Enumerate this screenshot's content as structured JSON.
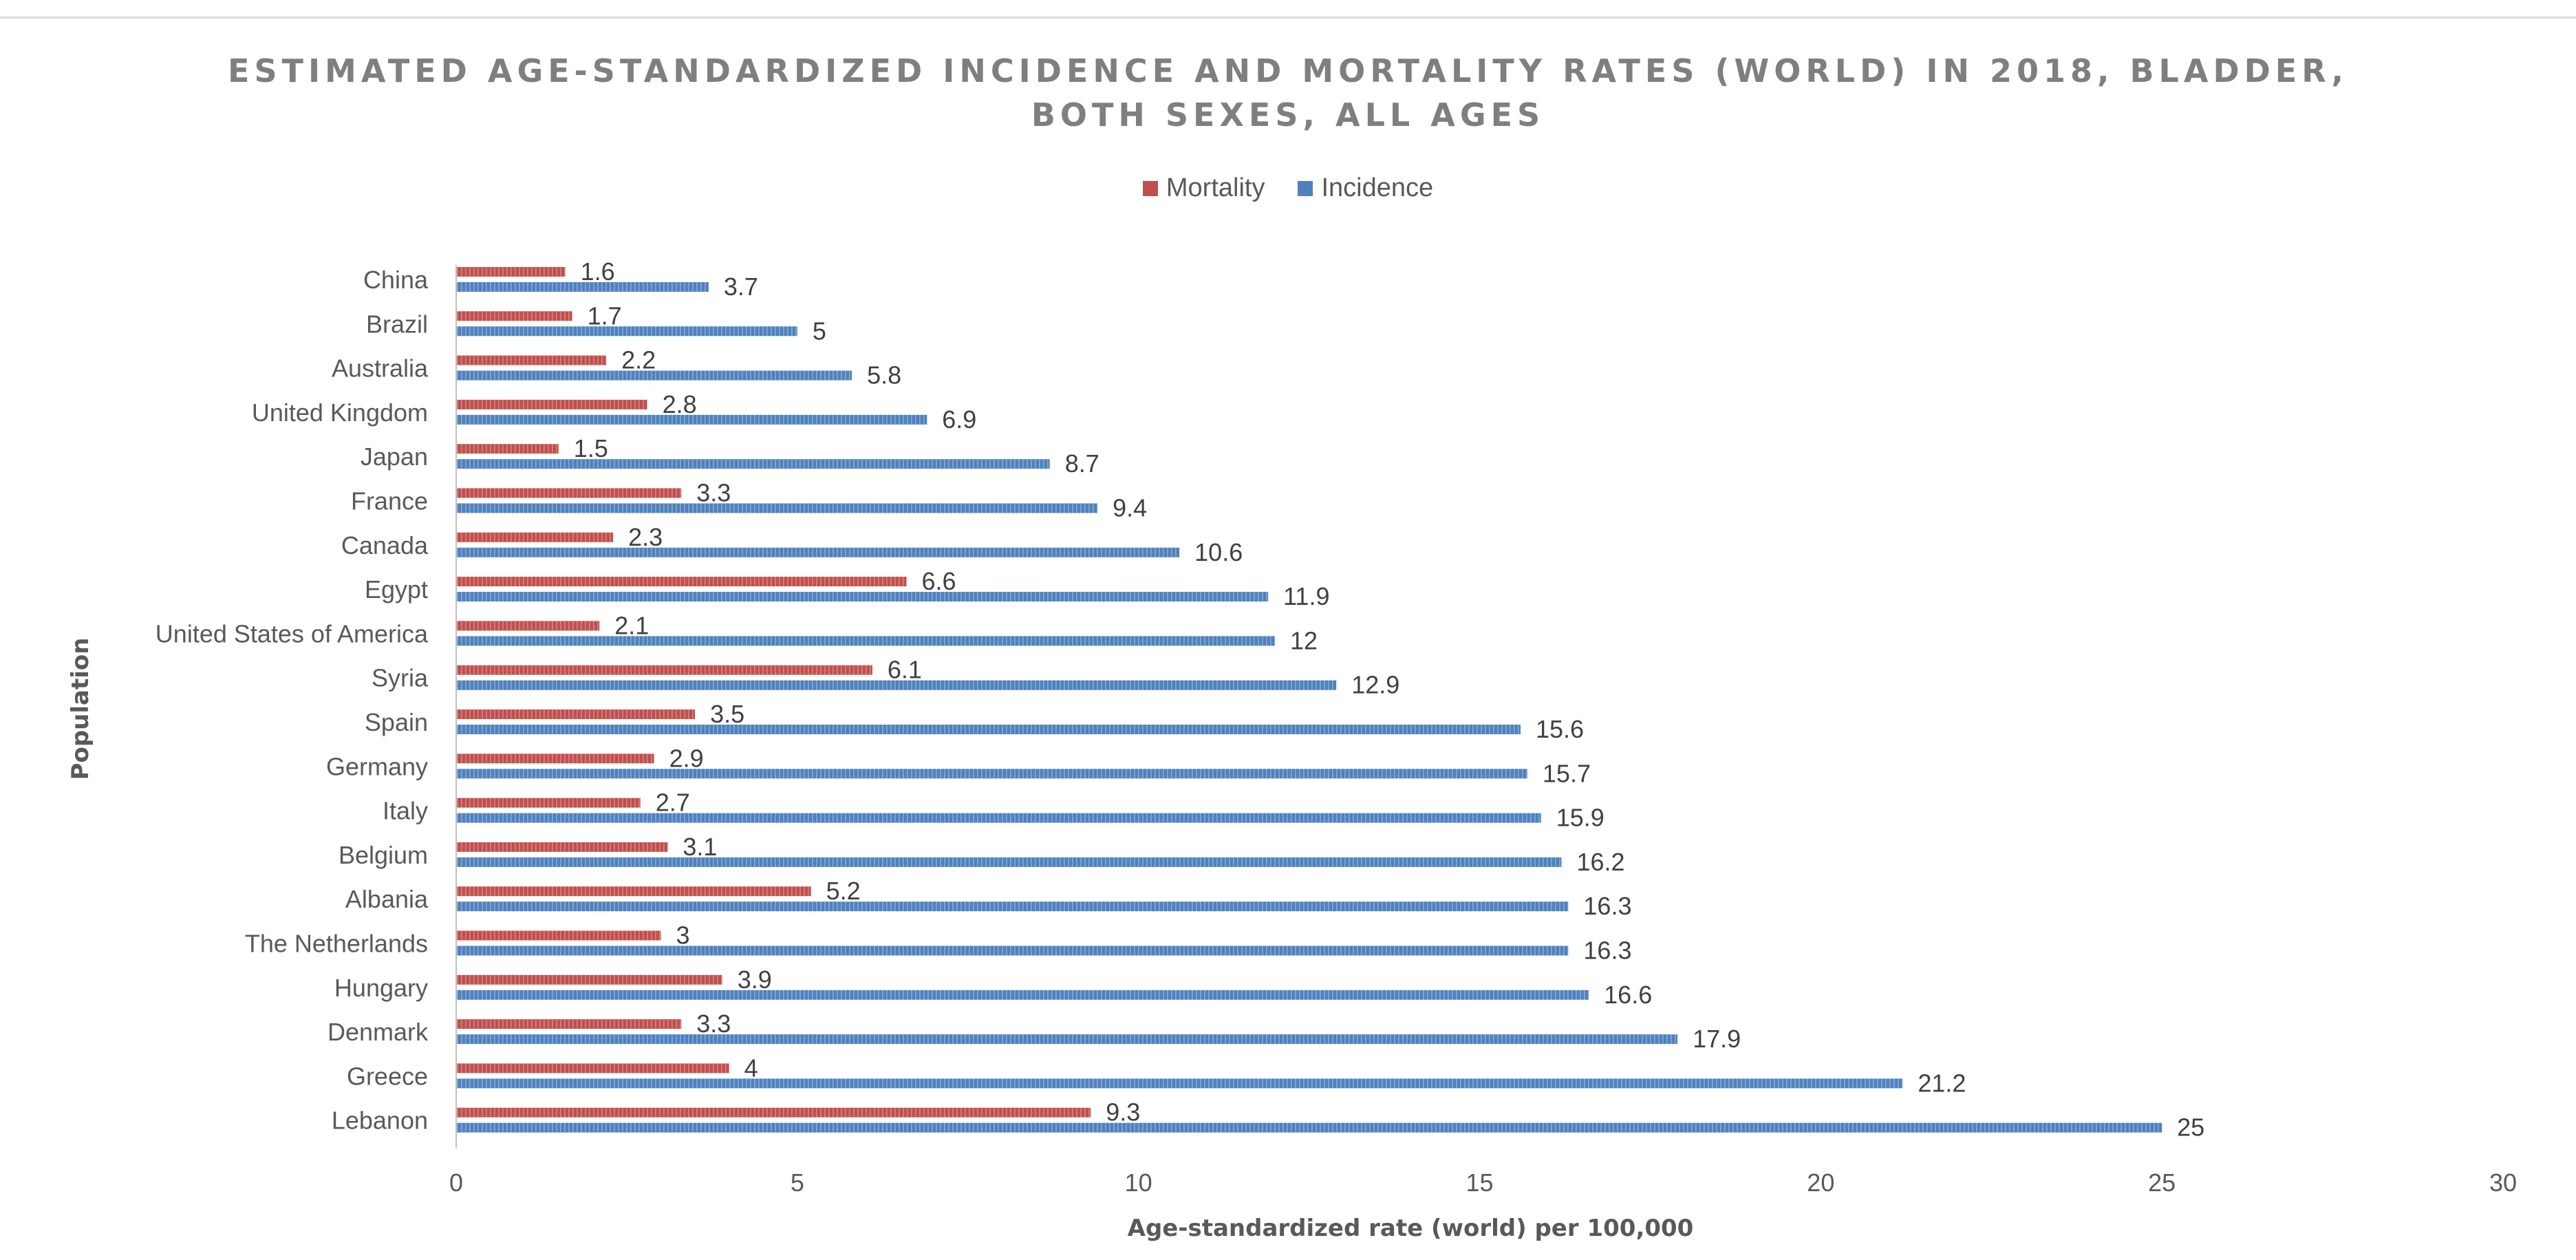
{
  "chart_data": {
    "type": "bar",
    "orientation": "horizontal",
    "title_lines": [
      "ESTIMATED AGE-STANDARDIZED INCIDENCE AND MORTALITY RATES (WORLD) IN 2018, BLADDER,",
      "BOTH SEXES, ALL AGES"
    ],
    "xlabel": "Age-standardized rate (world) per 100,000",
    "ylabel": "Population",
    "xlim": [
      0,
      30
    ],
    "xticks": [
      "0",
      "5",
      "10",
      "15",
      "20",
      "25",
      "30"
    ],
    "legend_position": "top-center",
    "categories": [
      "China",
      "Brazil",
      "Australia",
      "United Kingdom",
      "Japan",
      "France",
      "Canada",
      "Egypt",
      "United States of America",
      "Syria",
      "Spain",
      "Germany",
      "Italy",
      "Belgium",
      "Albania",
      "The Netherlands",
      "Hungary",
      "Denmark",
      "Greece",
      "Lebanon"
    ],
    "series": [
      {
        "name": "Mortality",
        "color": "#c0504d",
        "values": [
          1.6,
          1.7,
          2.2,
          2.8,
          1.5,
          3.3,
          2.3,
          6.6,
          2.1,
          6.1,
          3.5,
          2.9,
          2.7,
          3.1,
          5.2,
          3,
          3.9,
          3.3,
          4,
          9.3
        ],
        "labels": [
          "1.6",
          "1.7",
          "2.2",
          "2.8",
          "1.5",
          "3.3",
          "2.3",
          "6.6",
          "2.1",
          "6.1",
          "3.5",
          "2.9",
          "2.7",
          "3.1",
          "5.2",
          "3",
          "3.9",
          "3.3",
          "4",
          "9.3"
        ]
      },
      {
        "name": "Incidence",
        "color": "#4f81bd",
        "values": [
          3.7,
          5,
          5.8,
          6.9,
          8.7,
          9.4,
          10.6,
          11.9,
          12,
          12.9,
          15.6,
          15.7,
          15.9,
          16.2,
          16.3,
          16.3,
          16.6,
          17.9,
          21.2,
          25
        ],
        "labels": [
          "3.7",
          "5",
          "5.8",
          "6.9",
          "8.7",
          "9.4",
          "10.6",
          "11.9",
          "12",
          "12.9",
          "15.6",
          "15.7",
          "15.9",
          "16.2",
          "16.3",
          "16.3",
          "16.6",
          "17.9",
          "21.2",
          "25"
        ]
      }
    ]
  }
}
